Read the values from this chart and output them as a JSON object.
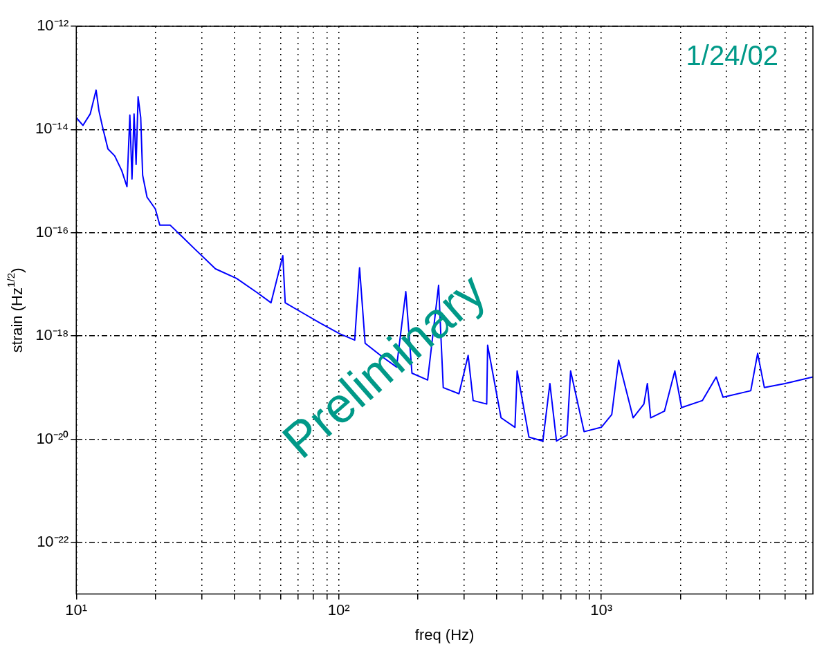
{
  "chart_data": {
    "type": "line",
    "xlabel": "freq (Hz)",
    "ylabel": "strain (Hz$^{1/2}$)",
    "log": "xy",
    "grid": true,
    "marker": "none",
    "line_style": "solid",
    "xlim": [
      10,
      6400
    ],
    "ylim": [
      1e-23,
      1e-12
    ],
    "xticks": [
      {
        "value": 10,
        "label": "10¹"
      },
      {
        "value": 20,
        "label": null
      },
      {
        "value": 30,
        "label": null
      },
      {
        "value": 40,
        "label": null
      },
      {
        "value": 50,
        "label": null
      },
      {
        "value": 60,
        "label": null
      },
      {
        "value": 70,
        "label": null
      },
      {
        "value": 80,
        "label": null
      },
      {
        "value": 90,
        "label": null
      },
      {
        "value": 100,
        "label": "10²"
      },
      {
        "value": 200,
        "label": null
      },
      {
        "value": 300,
        "label": null
      },
      {
        "value": 400,
        "label": null
      },
      {
        "value": 500,
        "label": null
      },
      {
        "value": 600,
        "label": null
      },
      {
        "value": 700,
        "label": null
      },
      {
        "value": 800,
        "label": null
      },
      {
        "value": 900,
        "label": null
      },
      {
        "value": 1000,
        "label": "10³"
      },
      {
        "value": 2000,
        "label": null
      },
      {
        "value": 3000,
        "label": null
      },
      {
        "value": 4000,
        "label": null
      },
      {
        "value": 5000,
        "label": null
      },
      {
        "value": 6000,
        "label": null
      }
    ],
    "yticks": [
      {
        "value": 1e-22,
        "label": "10⁻²²"
      },
      {
        "value": 1e-20,
        "label": "10⁻²⁰"
      },
      {
        "value": 1e-18,
        "label": "10⁻¹⁸"
      },
      {
        "value": 1e-16,
        "label": "10⁻¹⁶"
      },
      {
        "value": 1e-14,
        "label": "10⁻¹⁴"
      },
      {
        "value": 1e-12,
        "label": "10⁻¹²"
      }
    ],
    "annotations": [
      "1/24/02",
      "Preliminary"
    ],
    "series": [
      {
        "color": "#0000ff",
        "x": [
          10,
          10.6,
          11.3,
          11.9,
          12.2,
          12.6,
          13.2,
          14.0,
          14.9,
          15.6,
          16.0,
          16.3,
          16.6,
          16.9,
          17.2,
          17.6,
          17.9,
          18.6,
          20.0,
          20.8,
          22.8,
          25.0,
          28.2,
          33.9,
          40.8,
          48.9,
          55.2,
          61.2,
          62.5,
          72.8,
          84.6,
          101,
          115,
          120,
          126,
          147,
          166,
          180,
          190,
          218,
          240,
          250,
          287,
          311,
          325,
          366,
          369,
          415,
          469,
          478,
          530,
          599,
          637,
          675,
          740,
          764,
          860,
          1000,
          1096,
          1164,
          1322,
          1453,
          1498,
          1542,
          1740,
          1906,
          2022,
          2426,
          2740,
          2910,
          3710,
          3940,
          4180,
          5010,
          6400
        ],
        "values": [
          1.7e-14,
          1.2e-14,
          2e-14,
          5.8e-14,
          2.3e-14,
          1.1e-14,
          4.2e-15,
          3.1e-15,
          1.6e-15,
          7.8e-16,
          1.9e-14,
          1.1e-15,
          2e-14,
          2.1e-15,
          4.3e-14,
          1.7e-14,
          1.3e-15,
          4.9e-16,
          2.9e-16,
          1.4e-16,
          1.4e-16,
          8.9e-17,
          4.9e-17,
          2e-17,
          1.3e-17,
          6.9e-18,
          4.4e-18,
          3.6e-17,
          4.4e-18,
          2.8e-18,
          1.8e-18,
          1.1e-18,
          8.3e-19,
          2.1e-17,
          7.2e-19,
          3.9e-19,
          2.5e-19,
          7.2e-18,
          1.9e-19,
          1.4e-19,
          9.6e-18,
          1e-19,
          7.6e-20,
          4.2e-19,
          5.6e-20,
          4.8e-20,
          6.6e-19,
          2.6e-20,
          1.7e-20,
          2.1e-19,
          1.1e-20,
          9.2e-21,
          1.2e-19,
          9.2e-21,
          1.2e-20,
          2.1e-19,
          1.4e-20,
          1.7e-20,
          3e-20,
          3.4e-19,
          2.6e-20,
          4.8e-20,
          1.2e-19,
          2.6e-20,
          3.5e-20,
          2.1e-19,
          4.1e-20,
          5.6e-20,
          1.6e-19,
          6.5e-20,
          8.7e-20,
          4.6e-19,
          1e-19,
          1.2e-19,
          1.6e-19
        ]
      }
    ]
  }
}
